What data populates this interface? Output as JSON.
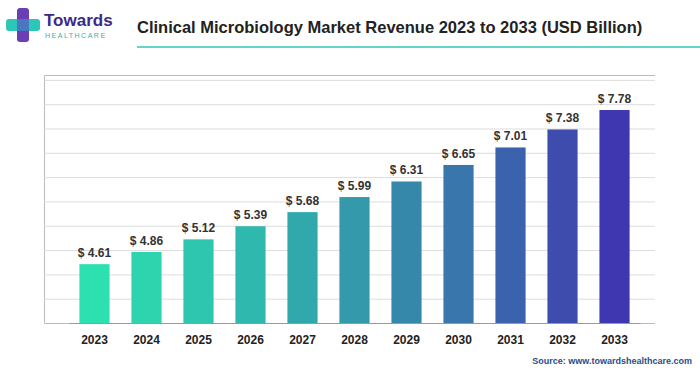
{
  "chart_data": {
    "type": "bar",
    "title": "Clinical Microbiology Market Revenue 2023 to 2033 (USD Billion)",
    "annotations": [
      "Towards",
      "HEALTHCARE",
      "Source: www.towardshealthcare.com"
    ],
    "categories": [
      "2023",
      "2024",
      "2025",
      "2026",
      "2027",
      "2028",
      "2029",
      "2030",
      "2031",
      "2032",
      "2033"
    ],
    "values": [
      4.61,
      4.86,
      5.12,
      5.39,
      5.68,
      5.99,
      6.31,
      6.65,
      7.01,
      7.38,
      7.78
    ],
    "value_labels": [
      "$ 4.61",
      "$ 4.86",
      "$ 5.12",
      "$ 5.39",
      "$ 5.68",
      "$ 5.99",
      "$ 6.31",
      "$ 6.65",
      "$ 7.01",
      "$ 7.38",
      "$ 7.78"
    ],
    "colors": [
      "#2de0b0",
      "#2dd4ae",
      "#2ec6ae",
      "#2fb8ad",
      "#31a9ac",
      "#3399ab",
      "#3588aa",
      "#3876ab",
      "#3b62ac",
      "#3d4cad",
      "#3f37b0"
    ],
    "ylim": [
      3.4,
      8.5
    ],
    "yticks": [
      3.9,
      4.4,
      4.9,
      5.4,
      5.9,
      6.4,
      6.9,
      7.4,
      7.9,
      8.4
    ],
    "grid": true,
    "data_labels": true,
    "tick_labels": "x"
  }
}
